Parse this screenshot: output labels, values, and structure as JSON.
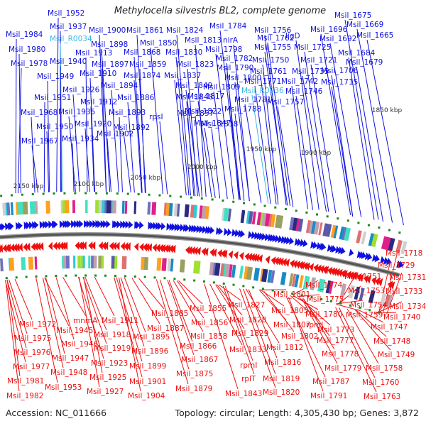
{
  "title": "Methylocella silvestris BL2, complete genome",
  "footer": {
    "accession": "Accession: NC_011666",
    "summary": "Topology: circular; Length: 4,305,430 bp; Genes: 3,872"
  },
  "colors": {
    "forward": "#1010e0",
    "reverse": "#ee1010",
    "rna": "#3ab8e8",
    "backbone": "#777777",
    "marker": "#1a8a1a"
  },
  "kbp_ticks": [
    "1850 kbp",
    "1900 kbp",
    "1950 kbp",
    "2000 kbp",
    "2050 kbp",
    "2100 kbp",
    "2150 kbp"
  ],
  "forward_labels": [
    {
      "text": "Msil_1952",
      "type": "gene"
    },
    {
      "text": "Msil_1937",
      "type": "gene"
    },
    {
      "text": "Msil_R0034",
      "type": "rna"
    },
    {
      "text": "Msil_1984",
      "type": "gene"
    },
    {
      "text": "Msil_1980",
      "type": "gene"
    },
    {
      "text": "Msil_1978",
      "type": "gene"
    },
    {
      "text": "Msil_1940",
      "type": "gene"
    },
    {
      "text": "Msil_1949",
      "type": "gene"
    },
    {
      "text": "Msil_1900",
      "type": "gene"
    },
    {
      "text": "Msil_1898",
      "type": "gene"
    },
    {
      "text": "Msil_1913",
      "type": "gene"
    },
    {
      "text": "Msil_1897",
      "type": "gene"
    },
    {
      "text": "Msil_1910",
      "type": "gene"
    },
    {
      "text": "Msil_1894",
      "type": "gene"
    },
    {
      "text": "Msil_1926",
      "type": "gene"
    },
    {
      "text": "Msil_1951",
      "type": "gene"
    },
    {
      "text": "Msil_1912",
      "type": "gene"
    },
    {
      "text": "Msil_1886",
      "type": "gene"
    },
    {
      "text": "Msil_1968",
      "type": "gene"
    },
    {
      "text": "Msil_1935",
      "type": "gene"
    },
    {
      "text": "Msil_1893",
      "type": "gene"
    },
    {
      "text": "Msil_1950",
      "type": "gene"
    },
    {
      "text": "Msil_1920",
      "type": "gene"
    },
    {
      "text": "Msil_1892",
      "type": "gene"
    },
    {
      "text": "Msil_1967",
      "type": "gene"
    },
    {
      "text": "Msil_1934",
      "type": "gene"
    },
    {
      "text": "Msil_1902",
      "type": "gene"
    },
    {
      "text": "Msil_1861",
      "type": "gene"
    },
    {
      "text": "Msil_1824",
      "type": "gene"
    },
    {
      "text": "Msil_1850",
      "type": "gene"
    },
    {
      "text": "Msil_1813",
      "type": "gene"
    },
    {
      "text": "nirA",
      "type": "gene"
    },
    {
      "text": "Msil_1868",
      "type": "gene"
    },
    {
      "text": "Msil_1830",
      "type": "gene"
    },
    {
      "text": "Msil_1798",
      "type": "gene"
    },
    {
      "text": "Msil_1859",
      "type": "gene"
    },
    {
      "text": "Msil_1823",
      "type": "gene"
    },
    {
      "text": "Msil_1874",
      "type": "gene"
    },
    {
      "text": "Msil_1837",
      "type": "gene"
    },
    {
      "text": "Msil_1849",
      "type": "gene"
    },
    {
      "text": "Msil_1848",
      "type": "gene"
    },
    {
      "text": "Msil_1857",
      "type": "gene"
    },
    {
      "text": "rpsI",
      "type": "gene"
    },
    {
      "text": "Msil_1847",
      "type": "gene"
    },
    {
      "text": "Msil_1784",
      "type": "gene"
    },
    {
      "text": "Msil_1782",
      "type": "gene"
    },
    {
      "text": "Msil_1790",
      "type": "gene"
    },
    {
      "text": "Msil_1800",
      "type": "gene"
    },
    {
      "text": "Msil_1809",
      "type": "gene"
    },
    {
      "text": "Msil_1817",
      "type": "gene"
    },
    {
      "text": "Msil_1822",
      "type": "gene"
    },
    {
      "text": "Msil_1818",
      "type": "gene"
    },
    {
      "text": "Msil_1756",
      "type": "gene"
    },
    {
      "text": "Msil_1762",
      "type": "gene"
    },
    {
      "text": "Msil_1755",
      "type": "gene"
    },
    {
      "text": "Msil_1750",
      "type": "gene"
    },
    {
      "text": "Msil_1761",
      "type": "gene"
    },
    {
      "text": "Msil_1771",
      "type": "gene"
    },
    {
      "text": "Msil_R0036",
      "type": "rna"
    },
    {
      "text": "Msil_1781",
      "type": "gene"
    },
    {
      "text": "Msil_1788",
      "type": "gene"
    },
    {
      "text": "ligD",
      "type": "gene"
    },
    {
      "text": "Msil_1725",
      "type": "gene"
    },
    {
      "text": "Msil_1721",
      "type": "gene"
    },
    {
      "text": "Msil_1735",
      "type": "gene"
    },
    {
      "text": "Msil_1742",
      "type": "gene"
    },
    {
      "text": "Msil_1746",
      "type": "gene"
    },
    {
      "text": "Msil_1757",
      "type": "gene"
    },
    {
      "text": "Msil_1696",
      "type": "gene"
    },
    {
      "text": "Msil_1692",
      "type": "gene"
    },
    {
      "text": "Msil_1706",
      "type": "gene"
    },
    {
      "text": "Msil_1715",
      "type": "gene"
    },
    {
      "text": "Msil_1675",
      "type": "gene"
    },
    {
      "text": "Msil_1669",
      "type": "gene"
    },
    {
      "text": "Msil_1665",
      "type": "gene"
    },
    {
      "text": "Msil_1684",
      "type": "gene"
    },
    {
      "text": "Msil_1679",
      "type": "gene"
    }
  ],
  "reverse_labels": [
    "Msil_1972",
    "Msil_1975",
    "Msil_1976",
    "Msil_1977",
    "Msil_1981",
    "Msil_1982",
    "mnmA",
    "Msil_1945",
    "Msil_1946",
    "Msil_1947",
    "Msil_1948",
    "Msil_1953",
    "Msil_1911",
    "Msil_1918",
    "Msil_1919",
    "Msil_1923",
    "Msil_1925",
    "Msil_1927",
    "Msil_1885",
    "Msil_1887",
    "Msil_1895",
    "Msil_1896",
    "Msil_1899",
    "Msil_1901",
    "Msil_1904",
    "Msil_1855",
    "Msil_1856",
    "Msil_1858",
    "Msil_1866",
    "Msil_1867",
    "Msil_1875",
    "Msil_1879",
    "Msil_1827",
    "Msil_1828",
    "Msil_1829",
    "Msil_1833",
    "rpmI",
    "rplT",
    "Msil_1843",
    "Msil_1801",
    "Msil_1805",
    "Msil_1807",
    "Msil_1802",
    "Msil_1812",
    "Msil_1816",
    "Msil_1819",
    "Msil_1820",
    "Msil_1774",
    "Msil_1775",
    "Msil_1780",
    "rpmJ",
    "Msil_1773",
    "Msil_1777",
    "Msil_1778",
    "Msil_1779",
    "Msil_1787",
    "Msil_1791",
    "Msil_1751",
    "Msil_1753",
    "Msil_1754",
    "Msil_1759",
    "Msil_1747",
    "Msil_1748",
    "Msil_1749",
    "Msil_1758",
    "Msil_1760",
    "Msil_1763",
    "Msil_1718",
    "Msil_1729",
    "Msil_1731",
    "Msil_1733",
    "Msil_1734",
    "Msil_1740"
  ]
}
